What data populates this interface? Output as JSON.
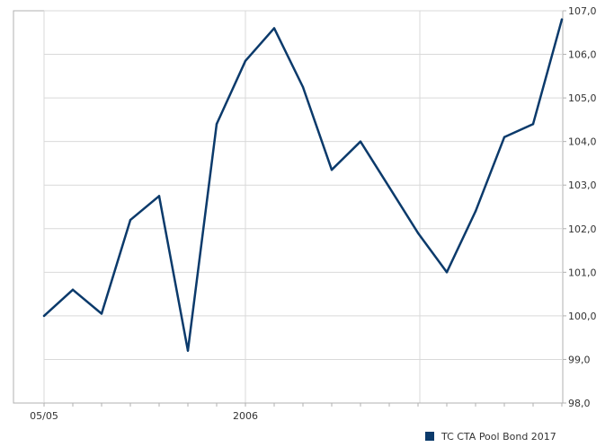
{
  "chart_data": {
    "type": "line",
    "x": [
      "05/05",
      "",
      "",
      "",
      "",
      "",
      "",
      "2006",
      "",
      "",
      "",
      "",
      "",
      "",
      "",
      "",
      "",
      "",
      ""
    ],
    "x_tick_labels": [
      "05/05",
      "2006"
    ],
    "series": [
      {
        "name": "TC CTA Pool Bond 2017",
        "color": "#0b3a6b",
        "values": [
          100.0,
          100.6,
          100.05,
          102.2,
          102.75,
          99.2,
          104.4,
          105.85,
          106.6,
          105.25,
          103.35,
          104.0,
          102.95,
          101.9,
          101.0,
          102.4,
          104.1,
          104.4,
          106.8
        ]
      }
    ],
    "ylim": [
      98.0,
      107.0
    ],
    "y_ticks": [
      "98,0",
      "99,0",
      "100,0",
      "101,0",
      "102,0",
      "103,0",
      "104,0",
      "105,0",
      "106,0",
      "107,0"
    ],
    "y_axis_position": "right",
    "grid": true,
    "legend_position": "bottom-right",
    "title": "",
    "xlabel": "",
    "ylabel": ""
  }
}
